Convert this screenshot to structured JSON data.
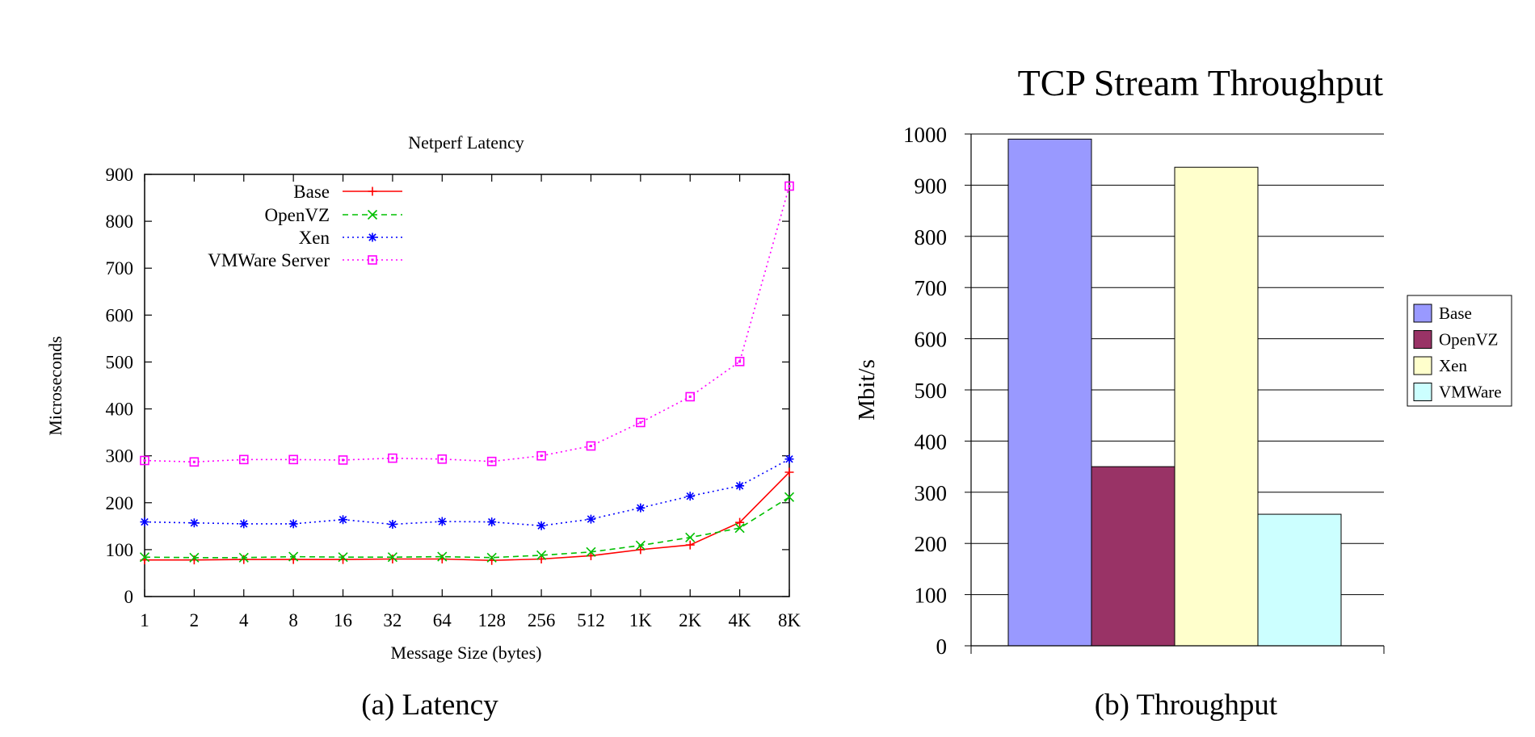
{
  "chart_data": [
    {
      "type": "line",
      "title": "Netperf Latency",
      "xlabel": "Message Size (bytes)",
      "ylabel": "Microseconds",
      "caption": "(a)  Latency",
      "categories": [
        "1",
        "2",
        "4",
        "8",
        "16",
        "32",
        "64",
        "128",
        "256",
        "512",
        "1K",
        "2K",
        "4K",
        "8K"
      ],
      "yticks": [
        "0",
        "100",
        "200",
        "300",
        "400",
        "500",
        "600",
        "700",
        "800",
        "900"
      ],
      "ylim": [
        0,
        900
      ],
      "grid": false,
      "legend_position": "top-left",
      "series": [
        {
          "name": "Base",
          "color": "#ff0000",
          "marker": "plus",
          "dash": "solid",
          "values": [
            78,
            78,
            79,
            79,
            79,
            80,
            80,
            77,
            80,
            87,
            100,
            110,
            158,
            265
          ]
        },
        {
          "name": "OpenVZ",
          "color": "#00c000",
          "marker": "x",
          "dash": "dashed",
          "values": [
            84,
            83,
            83,
            85,
            84,
            84,
            85,
            83,
            88,
            95,
            109,
            126,
            146,
            212
          ]
        },
        {
          "name": "Xen",
          "color": "#0000ff",
          "marker": "star",
          "dash": "dotted",
          "values": [
            159,
            157,
            155,
            155,
            164,
            154,
            160,
            159,
            151,
            165,
            189,
            214,
            236,
            293
          ]
        },
        {
          "name": "VMWare Server",
          "color": "#ff00ff",
          "marker": "square",
          "dash": "dotted",
          "values": [
            290,
            287,
            292,
            292,
            291,
            295,
            293,
            288,
            300,
            321,
            371,
            426,
            501,
            875
          ]
        }
      ]
    },
    {
      "type": "bar",
      "title": "TCP Stream Throughput",
      "xlabel": "",
      "ylabel": "Mbit/s",
      "caption": "(b)  Throughput",
      "yticks": [
        "0",
        "100",
        "200",
        "300",
        "400",
        "500",
        "600",
        "700",
        "800",
        "900",
        "1000"
      ],
      "ylim": [
        0,
        1000
      ],
      "grid": true,
      "legend_position": "right",
      "series": [
        {
          "name": "Base",
          "value": 990,
          "color": "#9999ff"
        },
        {
          "name": "OpenVZ",
          "value": 350,
          "color": "#993366"
        },
        {
          "name": "Xen",
          "value": 935,
          "color": "#ffffcc"
        },
        {
          "name": "VMWare",
          "value": 257,
          "color": "#ccffff"
        }
      ]
    }
  ]
}
